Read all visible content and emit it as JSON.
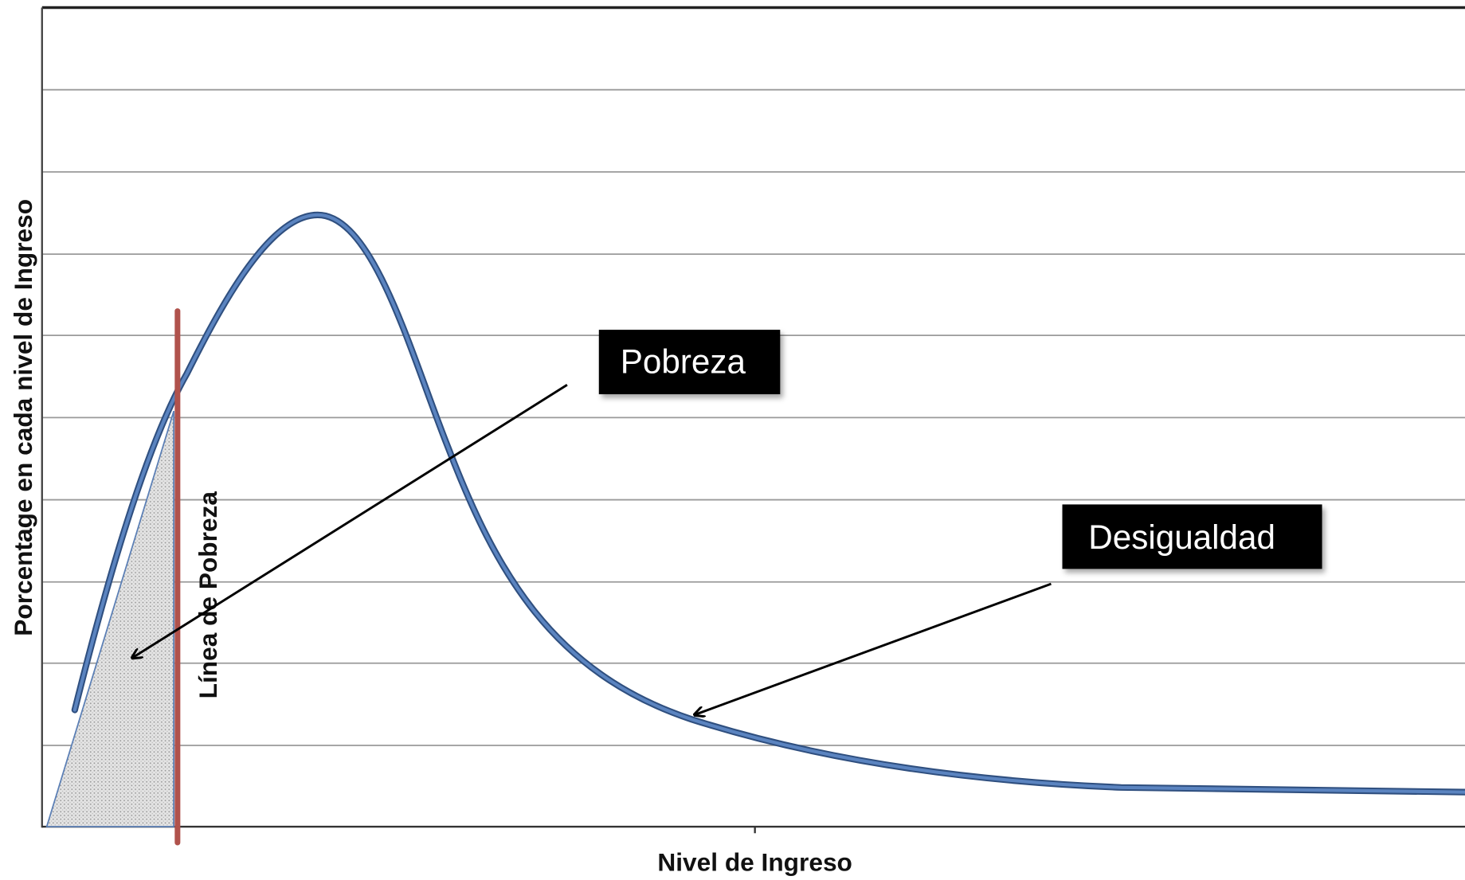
{
  "diagram": {
    "y_axis_label": "Porcentage en cada nivel de Ingreso",
    "x_axis_label": "Nivel de Ingreso",
    "poverty_line_label": "Línea de Pobreza",
    "callouts": [
      "Pobreza",
      "Desigualdad"
    ]
  }
}
